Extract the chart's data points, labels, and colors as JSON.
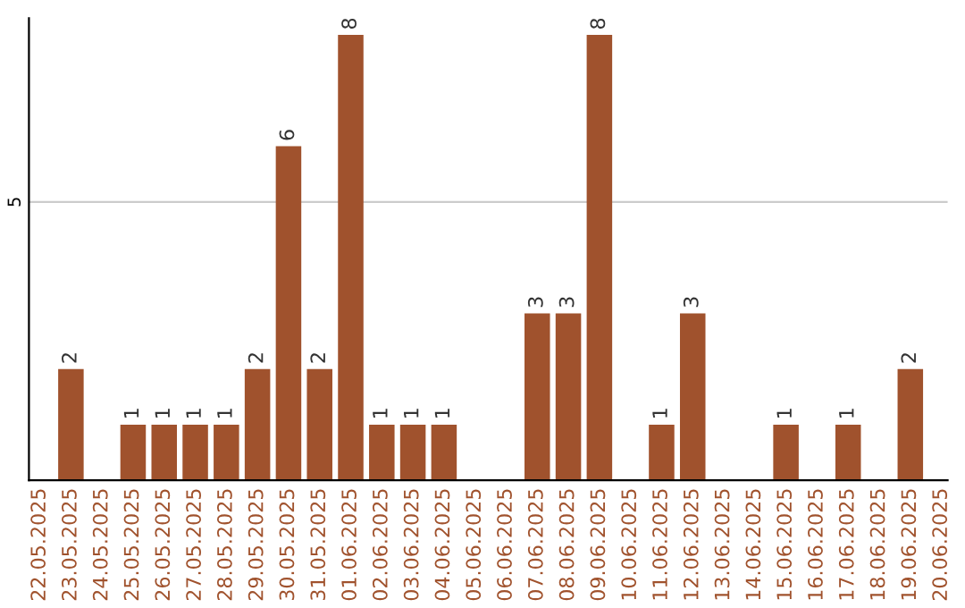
{
  "chart_data": {
    "type": "bar",
    "categories": [
      "22.05.2025",
      "23.05.2025",
      "24.05.2025",
      "25.05.2025",
      "26.05.2025",
      "27.05.2025",
      "28.05.2025",
      "29.05.2025",
      "30.05.2025",
      "31.05.2025",
      "01.06.2025",
      "02.06.2025",
      "03.06.2025",
      "04.06.2025",
      "05.06.2025",
      "06.06.2025",
      "07.06.2025",
      "08.06.2025",
      "09.06.2025",
      "10.06.2025",
      "11.06.2025",
      "12.06.2025",
      "13.06.2025",
      "14.06.2025",
      "15.06.2025",
      "16.06.2025",
      "17.06.2025",
      "18.06.2025",
      "19.06.2025",
      "20.06.2025"
    ],
    "series": [
      {
        "color": "#a0522d",
        "values": [
          null,
          2,
          null,
          1,
          1,
          1,
          1,
          2,
          6,
          2,
          8,
          1,
          1,
          1,
          null,
          null,
          3,
          3,
          8,
          null,
          1,
          3,
          null,
          null,
          1,
          null,
          1,
          null,
          2,
          null
        ]
      }
    ],
    "ylim": [
      0,
      8.3
    ],
    "yticks": [
      5
    ],
    "grid": "y",
    "data_labels": true,
    "legend": false
  }
}
